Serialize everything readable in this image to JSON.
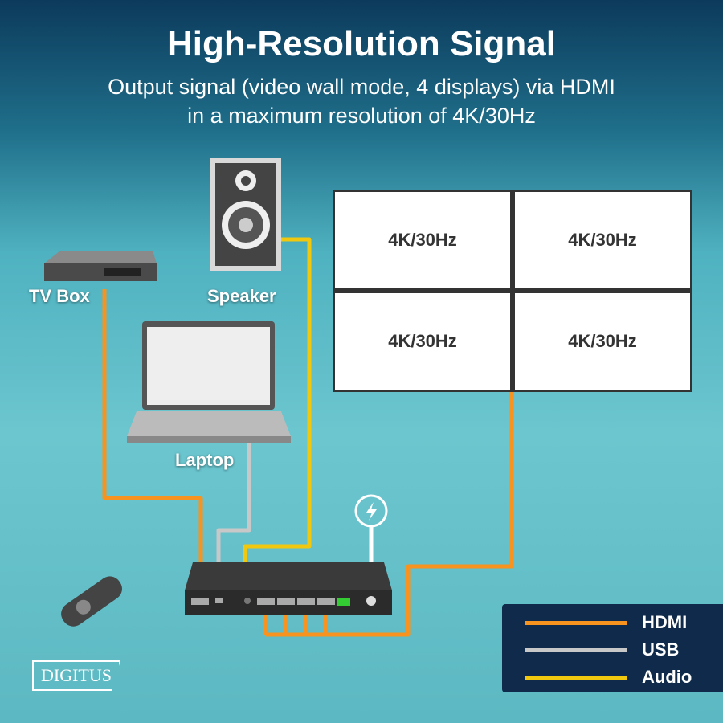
{
  "title": "High-Resolution Signal",
  "subtitle_line1": "Output signal (video wall mode, 4 displays) via HDMI",
  "subtitle_line2": "in a maximum resolution of 4K/30Hz",
  "devices": {
    "tv_box": "TV Box",
    "speaker": "Speaker",
    "laptop": "Laptop"
  },
  "displays": [
    "4K/30Hz",
    "4K/30Hz",
    "4K/30Hz",
    "4K/30Hz"
  ],
  "legend": [
    {
      "label": "HDMI",
      "color": "#f7931e"
    },
    {
      "label": "USB",
      "color": "#c8c8c8"
    },
    {
      "label": "Audio",
      "color": "#f2c80f"
    }
  ],
  "logo": "DIGITUS"
}
